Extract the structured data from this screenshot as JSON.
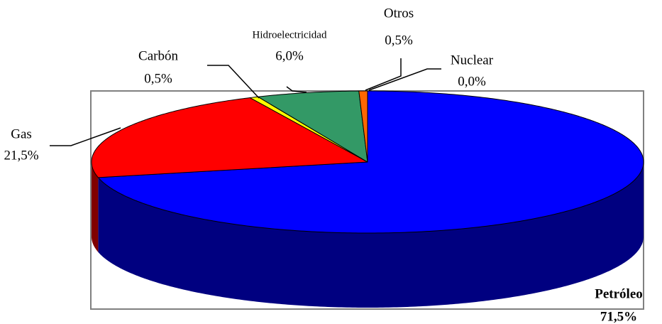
{
  "chart_data": {
    "type": "pie",
    "categories": [
      "Petróleo",
      "Gas",
      "Carbón",
      "Hidroelectricidad",
      "Otros",
      "Nuclear"
    ],
    "values": [
      71.5,
      21.5,
      0.5,
      6.0,
      0.5,
      0.0
    ],
    "value_labels": [
      "71,5%",
      "21,5%",
      "0,5%",
      "6,0%",
      "0,5%",
      "0,0%"
    ],
    "colors": [
      "#0000ff",
      "#ff0000",
      "#ffff00",
      "#339966",
      "#ff6600",
      "#ff00ff"
    ],
    "side_colors": [
      "#000080",
      "#800000",
      "#808000",
      "#1f5c3d",
      "#993d00",
      "#800080"
    ]
  }
}
